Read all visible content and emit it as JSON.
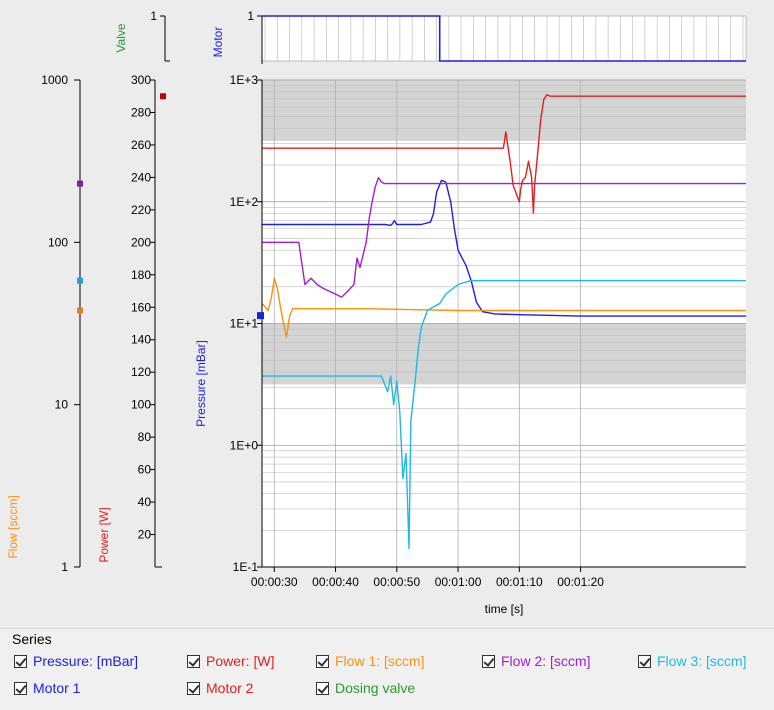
{
  "chart_data": [
    {
      "type": "line",
      "panel": "valve",
      "ylabel": "Valve",
      "yticks": [
        "1"
      ],
      "color": "#2a9a2a"
    },
    {
      "type": "line",
      "panel": "motor",
      "ylabel": "Motor",
      "yticks": [
        "1"
      ],
      "xlim": [
        28,
        107
      ],
      "series": [
        {
          "name": "Motor 1",
          "color": "#2020e0",
          "x": [
            28,
            57.0,
            57.0,
            107
          ],
          "values": [
            1,
            1,
            0,
            0
          ]
        }
      ]
    },
    {
      "type": "line",
      "panel": "main",
      "xlabel": "time [s]",
      "xlim": [
        28,
        107
      ],
      "xticks": [
        30,
        40,
        50,
        60,
        70,
        80
      ],
      "xtick_labels": [
        "00:00:30",
        "00:00:40",
        "00:00:50",
        "00:01:00",
        "00:01:10",
        "00:01:20"
      ],
      "grid": true,
      "axes": [
        {
          "id": "pressure",
          "label": "Pressure [mBar]",
          "scale": "log",
          "range": [
            0.1,
            1000
          ],
          "tick_labels": [
            "1E-1",
            "1E+0",
            "1E+1",
            "1E+2",
            "1E+3"
          ],
          "color": "#2020e0"
        },
        {
          "id": "power",
          "label": "Power [W]",
          "scale": "linear",
          "range": [
            0,
            300
          ],
          "ticks": [
            20,
            40,
            60,
            80,
            100,
            120,
            140,
            160,
            180,
            200,
            220,
            240,
            260,
            280,
            300
          ],
          "color": "#e02020"
        },
        {
          "id": "flow",
          "label": "Flow [sccm]",
          "scale": "log",
          "range": [
            1,
            1000
          ],
          "ticks": [
            1,
            10,
            100,
            1000
          ],
          "tick_labels": [
            "1",
            "10",
            "100",
            "1000"
          ],
          "color": "#ff9010"
        }
      ],
      "series": [
        {
          "name": "Pressure: [mBar]",
          "color": "#2020e0",
          "axis": "pressure",
          "x": [
            28,
            44,
            47,
            48,
            49,
            49.3,
            49.6,
            50,
            54,
            55.5,
            56,
            56.5,
            57.3,
            58,
            58.8,
            59.4,
            60,
            60.6,
            61.3,
            62.2,
            63,
            64,
            66,
            70,
            80,
            107
          ],
          "values": [
            65,
            65,
            65,
            65,
            64,
            66,
            70,
            65,
            65,
            68,
            80,
            120,
            150,
            145,
            100,
            60,
            40,
            35,
            30,
            22,
            15,
            12.5,
            12,
            11.8,
            11.5,
            11.5
          ]
        },
        {
          "name": "Power: [W]",
          "color": "#e02020",
          "axis": "power",
          "x": [
            28,
            66,
            67.4,
            67.8,
            68.1,
            68.5,
            69,
            69.5,
            70,
            70.2,
            70.5,
            71,
            71.5,
            72,
            72.3,
            72.5,
            73,
            73.5,
            74,
            74.5,
            75,
            76,
            80,
            107
          ],
          "values": [
            258,
            258,
            258,
            268,
            260,
            250,
            235,
            230,
            225,
            232,
            238,
            240,
            250,
            240,
            218,
            235,
            255,
            276,
            288,
            291,
            290,
            290,
            290,
            290
          ]
        },
        {
          "name": "Flow 1: [sccm]",
          "color": "#ff9010",
          "axis": "flow",
          "x": [
            28,
            28.5,
            29,
            29.5,
            30,
            30.5,
            31,
            31.5,
            32,
            32.5,
            33,
            35,
            45,
            52,
            60,
            107
          ],
          "values": [
            42,
            40,
            38,
            45,
            60,
            52,
            40,
            32,
            26,
            35,
            39,
            39,
            39,
            38.5,
            38,
            38
          ]
        },
        {
          "name": "Flow 2: [sccm]",
          "color": "#a020d0",
          "axis": "flow",
          "x": [
            28,
            34,
            35,
            36,
            37,
            38,
            39,
            40,
            41,
            42,
            43,
            43.5,
            44,
            45,
            45.5,
            46,
            46.5,
            47,
            47.5,
            48,
            49,
            60,
            107
          ],
          "values": [
            100,
            100,
            55,
            60,
            55,
            52,
            50,
            48,
            46,
            50,
            55,
            80,
            70,
            100,
            140,
            180,
            220,
            250,
            235,
            230,
            230,
            230,
            230
          ]
        },
        {
          "name": "Flow 3: [sccm]",
          "color": "#20b8e8",
          "axis": "flow",
          "x": [
            28,
            46,
            47.5,
            48.5,
            49,
            49.5,
            50,
            50.5,
            51,
            51.5,
            52,
            52.3,
            53,
            53.5,
            54,
            55,
            56,
            57,
            58,
            60,
            62,
            107
          ],
          "values": [
            15,
            15,
            15,
            12,
            15,
            10,
            14,
            9,
            3.5,
            5,
            1.3,
            8,
            14,
            22,
            30,
            38,
            40,
            42,
            48,
            55,
            58,
            58
          ]
        },
        {
          "name": "Motor 1",
          "color": "#2020e0",
          "marker_only": true
        },
        {
          "name": "Motor 2",
          "color": "#e02020",
          "marker_only": true
        },
        {
          "name": "Dosing valve",
          "color": "#2a9a2a",
          "marker_only": true
        }
      ]
    }
  ],
  "legend": {
    "title": "Series",
    "items": [
      {
        "label": "Pressure: [mBar]",
        "color": "#2020e0"
      },
      {
        "label": "Power: [W]",
        "color": "#e02020"
      },
      {
        "label": "Flow 1: [sccm]",
        "color": "#ff9010"
      },
      {
        "label": "Flow 2: [sccm]",
        "color": "#a020d0"
      },
      {
        "label": "Flow 3: [sccm]",
        "color": "#20b8e8"
      },
      {
        "label": "Motor 1",
        "color": "#2020e0"
      },
      {
        "label": "Motor 2",
        "color": "#e02020"
      },
      {
        "label": "Dosing valve",
        "color": "#2a9a2a"
      }
    ]
  }
}
